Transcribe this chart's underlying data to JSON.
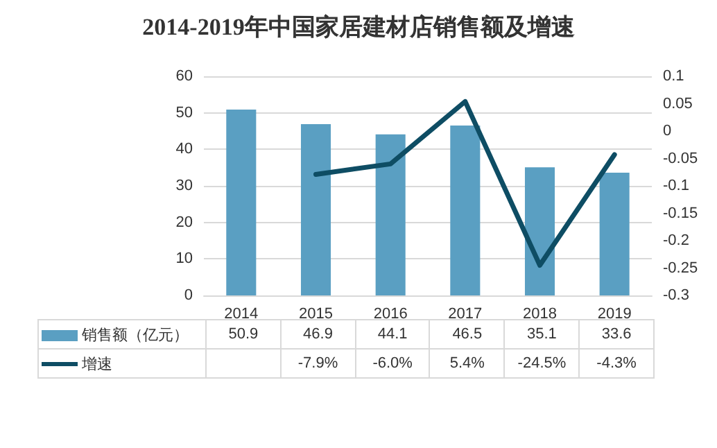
{
  "chart_data": {
    "type": "bar",
    "title": "2014-2019年中国家居建材店销售额及增速",
    "categories": [
      "2014",
      "2015",
      "2016",
      "2017",
      "2018",
      "2019"
    ],
    "series": [
      {
        "name": "销售额（亿元）",
        "color": "#5a9fc2",
        "values": [
          50.9,
          46.9,
          44.1,
          46.5,
          35.1,
          33.6
        ],
        "value_labels": [
          "50.9",
          "46.9",
          "44.1",
          "46.5",
          "35.1",
          "33.6"
        ]
      },
      {
        "name": "增速",
        "type": "line",
        "axis": "y2",
        "color": "#0e4d64",
        "values": [
          null,
          -0.079,
          -0.06,
          0.054,
          -0.245,
          -0.043
        ],
        "value_labels": [
          null,
          "-7.9%",
          "-6.0%",
          "5.4%",
          "-24.5%",
          "-4.3%"
        ]
      }
    ],
    "ylim": [
      0,
      60
    ],
    "yticks": [
      0,
      10,
      20,
      30,
      40,
      50,
      60
    ],
    "y2lim": [
      -0.3,
      0.1
    ],
    "y2ticks": [
      -0.3,
      -0.25,
      -0.2,
      -0.15,
      -0.1,
      -0.05,
      0,
      0.05,
      0.1
    ],
    "grid": "y",
    "legend": "bottom left",
    "marker": "none",
    "line_style": "solid"
  }
}
